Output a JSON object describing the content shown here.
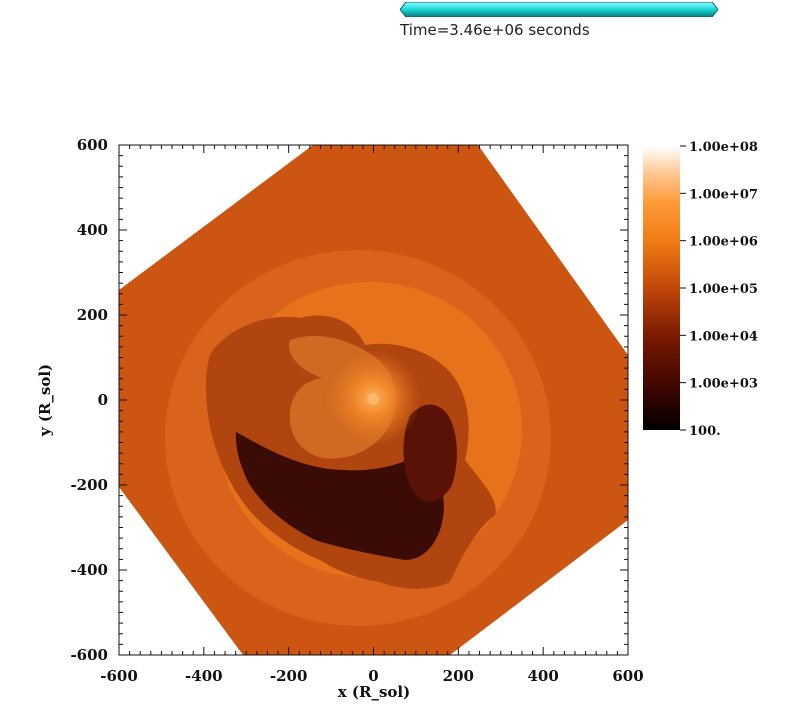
{
  "time_annotation": {
    "text": "Time=3.46e+06 seconds",
    "progress_fraction": 1.0,
    "bar_color": "#19d6d6"
  },
  "chart_data": {
    "type": "heatmap",
    "xlabel": "x (R_sol)",
    "ylabel": "y (R_sol)",
    "xlim": [
      -600,
      600
    ],
    "ylim": [
      -600,
      600
    ],
    "x_ticks": [
      -600,
      -400,
      -200,
      0,
      200,
      400,
      600
    ],
    "y_ticks": [
      -600,
      -400,
      -200,
      0,
      200,
      400,
      600
    ],
    "x_tick_labels": [
      "-600",
      "-400",
      "-200",
      "0",
      "200",
      "400",
      "600"
    ],
    "y_tick_labels": [
      "-600",
      "-400",
      "-200",
      "0",
      "200",
      "400",
      "600"
    ],
    "grid": false,
    "colorbar": {
      "scale": "log",
      "range": [
        100,
        100000000
      ],
      "ticks": [
        100000000,
        10000000,
        1000000,
        100000,
        10000,
        1000,
        100
      ],
      "tick_labels": [
        "1.00e+08",
        "1.00e+07",
        "1.00e+06",
        "1.00e+05",
        "1.00e+04",
        "1.00e+03",
        "100."
      ],
      "colors": [
        "#000000",
        "#3a0500",
        "#7a1a00",
        "#c2470a",
        "#ef7a12",
        "#ff9a38",
        "#ffc58f",
        "#ffffff"
      ],
      "placement": "right"
    },
    "field_colors": {
      "outer": "#cc5512",
      "shell": "#de6a16",
      "envelope": "#e8771c",
      "mixing": "#b04510",
      "cavity": "#3b0c05",
      "core": "#f28a2a"
    }
  }
}
